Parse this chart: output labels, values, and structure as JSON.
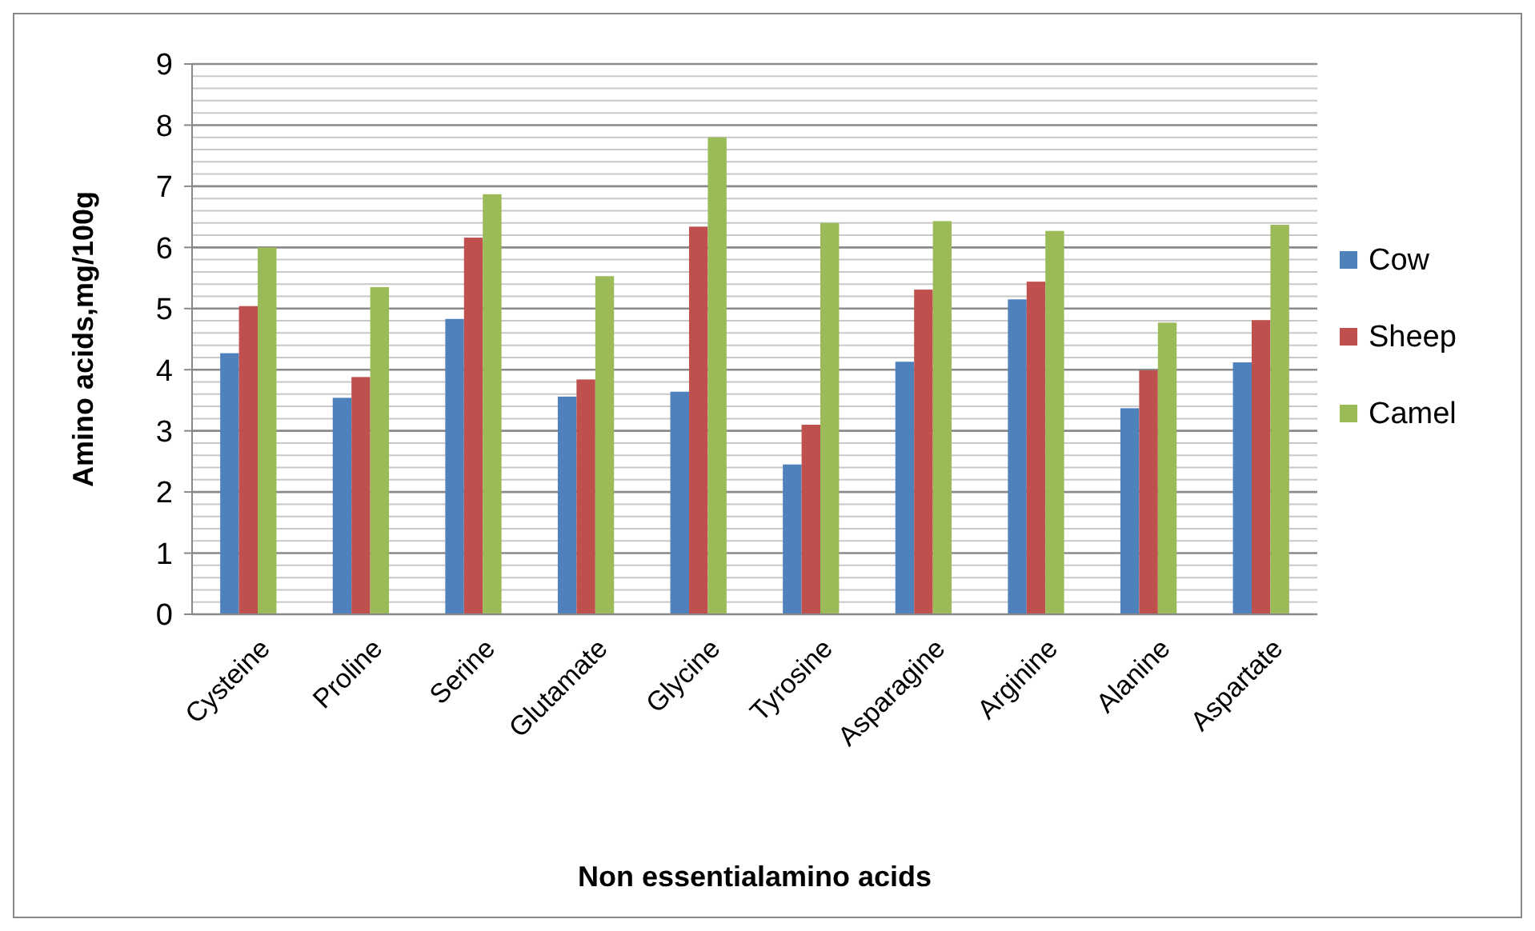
{
  "chart_data": {
    "type": "bar",
    "xlabel": "Non essentialamino acids",
    "ylabel": "Amino acids,mg/100g",
    "categories": [
      "Cysteine",
      "Proline",
      "Serine",
      "Glutamate",
      "Glycine",
      "Tyrosine",
      "Asparagine",
      "Arginine",
      "Alanine",
      "Aspartate"
    ],
    "series": [
      {
        "name": "Cow",
        "color": "#4f81bd",
        "values": [
          4.27,
          3.54,
          4.83,
          3.56,
          3.64,
          2.45,
          4.13,
          5.15,
          3.37,
          4.12
        ]
      },
      {
        "name": "Sheep",
        "color": "#c0504d",
        "values": [
          5.04,
          3.88,
          6.16,
          3.84,
          6.34,
          3.1,
          5.31,
          5.44,
          3.99,
          4.81
        ]
      },
      {
        "name": "Camel",
        "color": "#9bbb59",
        "values": [
          6.0,
          5.35,
          6.87,
          5.53,
          7.8,
          6.4,
          6.43,
          6.27,
          4.77,
          6.37
        ]
      }
    ],
    "ylim": [
      0,
      9
    ],
    "yticks": [
      0,
      {
        "value": 0.2,
        "label": null
      },
      {
        "value": 0.4,
        "label": null
      },
      {
        "value": 0.6,
        "label": null
      },
      {
        "value": 0.8,
        "label": null
      },
      1,
      {
        "value": 1.2,
        "label": null
      },
      {
        "value": 1.4,
        "label": null
      },
      {
        "value": 1.6,
        "label": null
      },
      {
        "value": 1.8,
        "label": null
      },
      2,
      {
        "value": 2.2,
        "label": null
      },
      {
        "value": 2.4,
        "label": null
      },
      {
        "value": 2.6,
        "label": null
      },
      {
        "value": 2.8,
        "label": null
      },
      3,
      {
        "value": 3.2,
        "label": null
      },
      {
        "value": 3.4,
        "label": null
      },
      {
        "value": 3.6,
        "label": null
      },
      {
        "value": 3.8,
        "label": null
      },
      4,
      {
        "value": 4.2,
        "label": null
      },
      {
        "value": 4.4,
        "label": null
      },
      {
        "value": 4.6,
        "label": null
      },
      {
        "value": 4.8,
        "label": null
      },
      5,
      {
        "value": 5.2,
        "label": null
      },
      {
        "value": 5.4,
        "label": null
      },
      {
        "value": 5.6,
        "label": null
      },
      {
        "value": 5.8,
        "label": null
      },
      6,
      {
        "value": 6.2,
        "label": null
      },
      {
        "value": 6.4,
        "label": null
      },
      {
        "value": 6.6,
        "label": null
      },
      {
        "value": 6.8,
        "label": null
      },
      7,
      {
        "value": 7.2,
        "label": null
      },
      {
        "value": 7.4,
        "label": null
      },
      {
        "value": 7.6,
        "label": null
      },
      {
        "value": 7.8,
        "label": null
      },
      8,
      {
        "value": 8.2,
        "label": null
      },
      {
        "value": 8.4,
        "label": null
      },
      {
        "value": 8.6,
        "label": null
      },
      {
        "value": 8.8,
        "label": null
      },
      9
    ],
    "grid": "y",
    "legend": "right"
  }
}
